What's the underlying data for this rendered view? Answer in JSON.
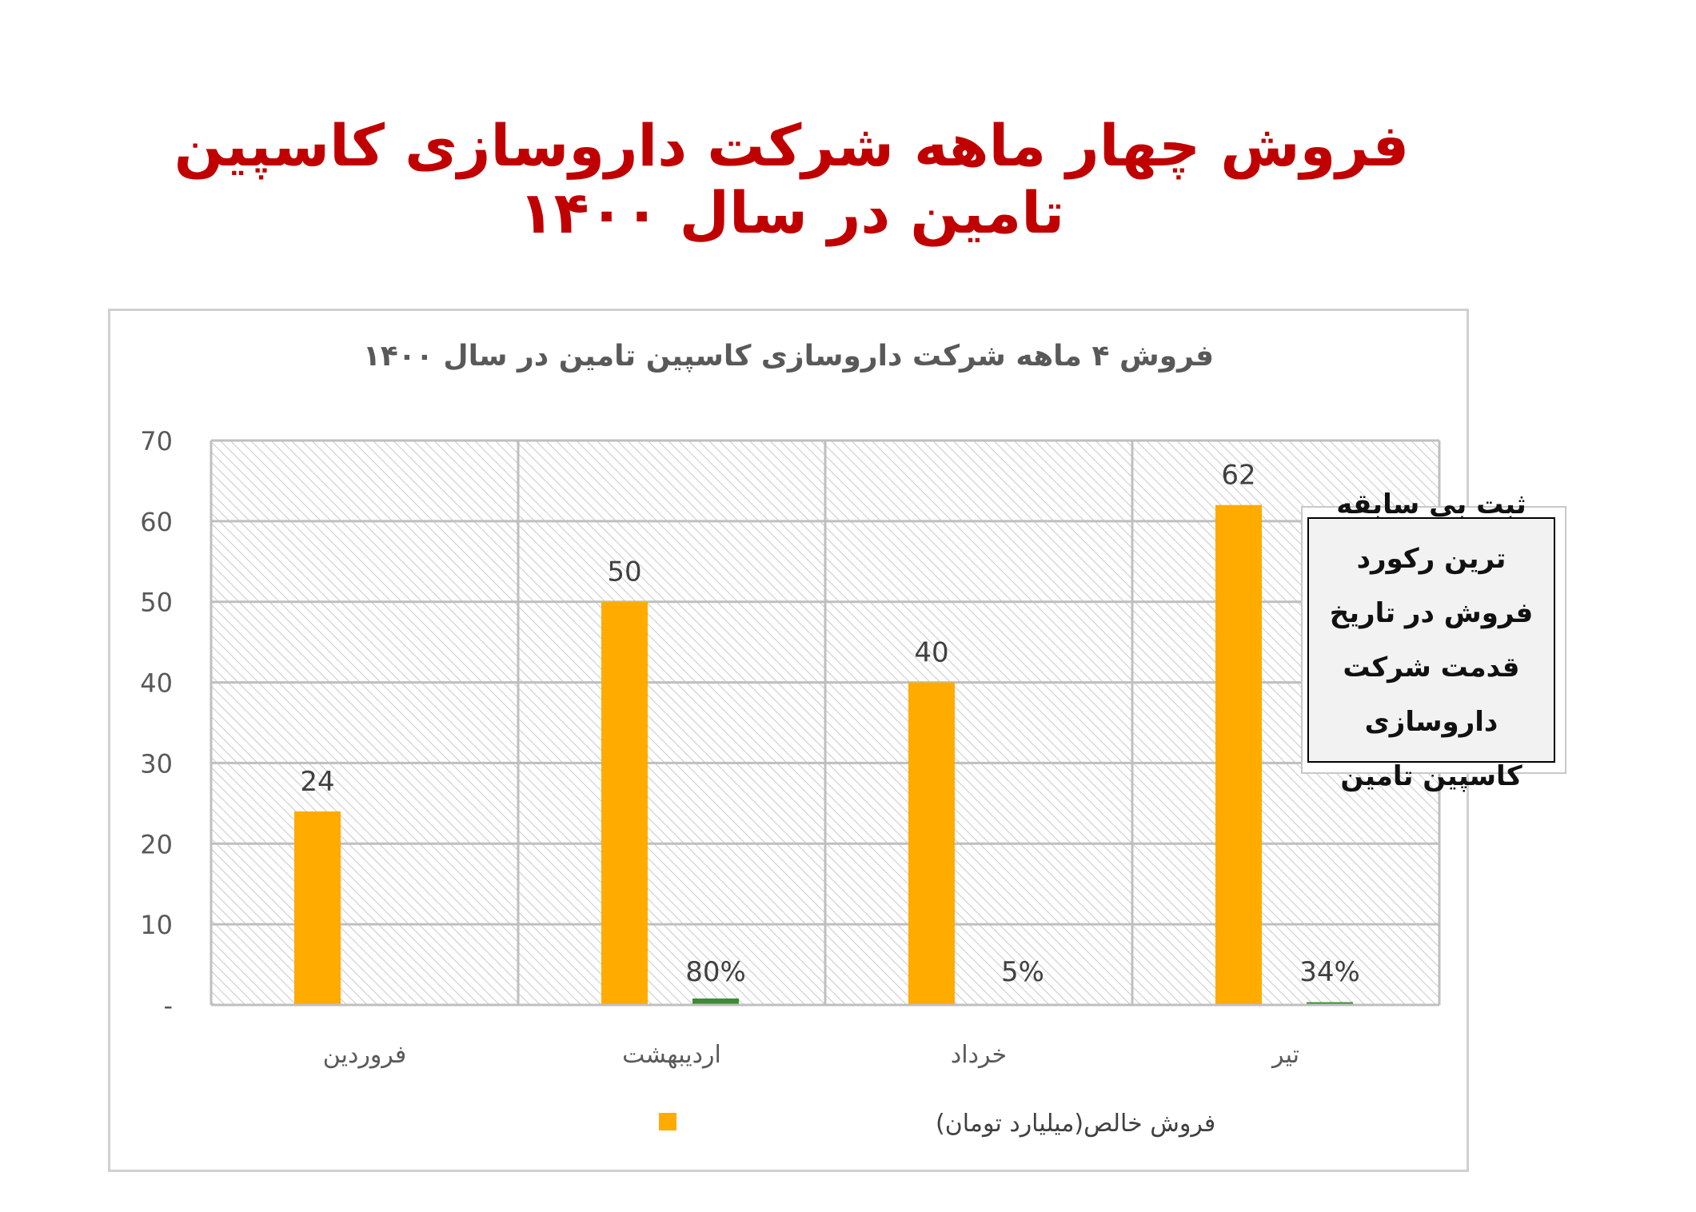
{
  "page_title": "فروش چهار ماهه شرکت داروسازی کاسپین تامین در سال ۱۴۰۰",
  "callout_text": "ثبت بی سابقه ترین رکورد فروش در تاریخ قدمت شرکت داروسازی کاسپین تامین",
  "colors": {
    "title": "#c00000",
    "bar": "#ffab00",
    "growth": "#3d8b37"
  },
  "chart_data": {
    "type": "bar",
    "title": "فروش ۴ ماهه  شرکت داروسازی کاسپین تامین در سال ۱۴۰۰",
    "categories": [
      "فروردین",
      "اردیبهشت",
      "خرداد",
      "تیر"
    ],
    "series": [
      {
        "name": "فروش خالص(میلیارد تومان)",
        "values": [
          24,
          50,
          40,
          62
        ],
        "labels": [
          "24",
          "50",
          "40",
          "62"
        ]
      },
      {
        "values": [
          0,
          0.8,
          0.05,
          0.34
        ],
        "labels": [
          "",
          "80%",
          "5%",
          "34%"
        ]
      }
    ],
    "ylim": [
      0,
      70
    ],
    "yticks": [
      "-",
      "10",
      "20",
      "30",
      "40",
      "50",
      "60",
      "70"
    ],
    "grid": true,
    "legend_position": "bottom"
  }
}
